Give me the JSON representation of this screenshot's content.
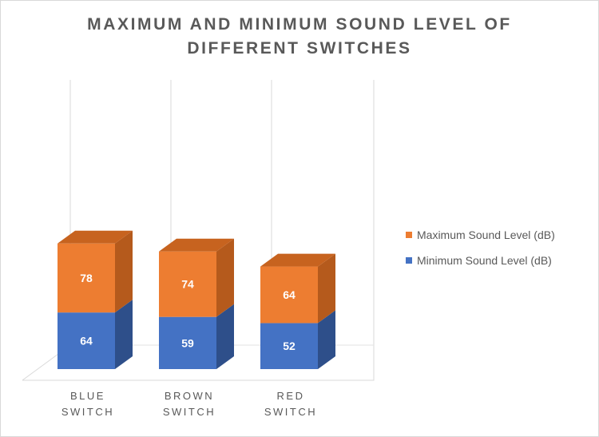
{
  "chart_data": {
    "type": "bar",
    "stacked": true,
    "three_d": true,
    "title_lines": [
      "MAXIMUM AND MINIMUM SOUND LEVEL OF",
      "DIFFERENT SWITCHES"
    ],
    "categories": [
      "BLUE\nSWITCH",
      "BROWN\nSWITCH",
      "RED\nSWITCH"
    ],
    "series": [
      {
        "name": "Minimum Sound Level (dB)",
        "values": [
          64,
          59,
          52
        ],
        "color": "#4472c4",
        "side_color": "#2e4f8a"
      },
      {
        "name": "Maximum Sound Level (dB)",
        "values": [
          78,
          74,
          64
        ],
        "color": "#ed7d31",
        "side_color": "#b55a1c",
        "top_color": "#c7631f"
      }
    ],
    "legend_order": [
      1,
      0
    ],
    "legend_position": "right",
    "grid": "vertical",
    "ylim": [
      0,
      180
    ]
  }
}
